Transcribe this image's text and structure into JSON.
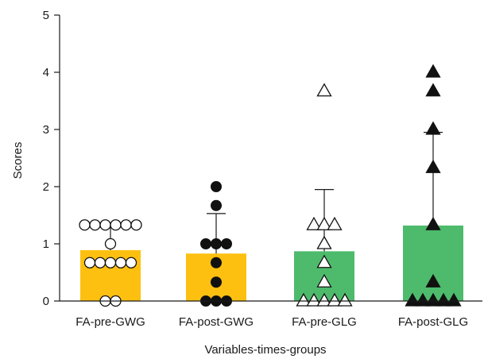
{
  "chart_data": {
    "type": "bar",
    "xlabel": "Variables-times-groups",
    "ylabel": "Scores",
    "ylim": [
      0,
      5
    ],
    "yticks": [
      0,
      1,
      2,
      3,
      4,
      5
    ],
    "grid": false,
    "legend": "none",
    "categories": [
      "FA-pre-GWG",
      "FA-post-GWG",
      "FA-pre-GLG",
      "FA-post-GLG"
    ],
    "bars": [
      {
        "category": "FA-pre-GWG",
        "mean": 0.89,
        "error_upper": 1.33,
        "color": "#FDC010",
        "marker": "open-circle"
      },
      {
        "category": "FA-post-GWG",
        "mean": 0.83,
        "error_upper": 1.53,
        "color": "#FDC010",
        "marker": "filled-circle"
      },
      {
        "category": "FA-pre-GLG",
        "mean": 0.87,
        "error_upper": 1.95,
        "color": "#4DBB6B",
        "marker": "open-triangle"
      },
      {
        "category": "FA-post-GLG",
        "mean": 1.32,
        "error_upper": 2.95,
        "color": "#4DBB6B",
        "marker": "filled-triangle"
      }
    ],
    "points": [
      [
        1.33,
        1.33,
        1.33,
        1.33,
        1.33,
        1.33,
        1.0,
        0.67,
        0.67,
        0.67,
        0.67,
        0.67,
        0.0,
        0.0
      ],
      [
        2.0,
        1.67,
        1.0,
        1.0,
        1.0,
        0.67,
        0.33,
        0.0,
        0.0,
        0.0
      ],
      [
        3.67,
        1.33,
        1.33,
        1.33,
        1.0,
        0.67,
        0.33,
        0.0,
        0.0,
        0.0,
        0.0,
        0.0
      ],
      [
        4.0,
        3.67,
        3.0,
        2.33,
        1.33,
        0.33,
        0.0,
        0.0,
        0.0,
        0.0,
        0.0
      ]
    ]
  }
}
